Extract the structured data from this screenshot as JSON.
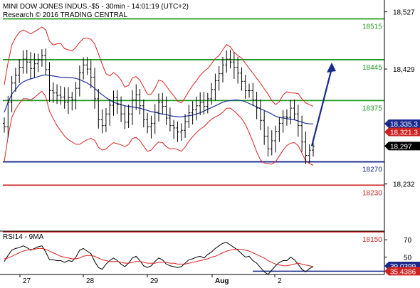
{
  "header": {
    "line1": "MINI DOW JONES INDUS.-$5 - 30min - 14:01:19 (UTC+2)",
    "line2": "Research © 2016 TRADING CENTRAL"
  },
  "colors": {
    "price_bars": "#000000",
    "bollinger": "#dd2222",
    "moving_average": "#2233aa",
    "resistance": "#229922",
    "support_blue": "#1a2a8c",
    "support_red": "#cc2222",
    "arrow": "#1a2a8c",
    "rsi": "#000000",
    "rsi_ma": "#dd2222",
    "badge_blue": "#1a2a8c",
    "badge_red": "#cc2222",
    "badge_black": "#000000"
  },
  "chart_data": [
    {
      "type": "candlestick",
      "panel": "price",
      "x_ticks": [
        "27",
        "28",
        "29",
        "Aug",
        "2"
      ],
      "ylim": [
        18150,
        18540
      ],
      "y_ticks": [
        "18,527",
        "18,429",
        "18,232"
      ],
      "y_tick_values": [
        18527,
        18429,
        18232
      ],
      "levels": [
        {
          "value": 18515,
          "label": "18515",
          "color": "green"
        },
        {
          "value": 18445,
          "label": "18445",
          "color": "green"
        },
        {
          "value": 18375,
          "label": "18375",
          "color": "green"
        },
        {
          "value": 18270,
          "label": "18270",
          "color": "blue"
        },
        {
          "value": 18230,
          "label": "18230",
          "color": "red"
        },
        {
          "value": 18150,
          "label": "18150",
          "color": "red"
        }
      ],
      "badges": [
        {
          "value": 18335.3,
          "label": "18,335.3",
          "color": "blue"
        },
        {
          "value": 18321.3,
          "label": "18,321.3",
          "color": "red"
        },
        {
          "value": 18297,
          "label": "18,297",
          "color": "black"
        }
      ],
      "arrow": {
        "from": [
          185,
          18297
        ],
        "to": [
          196,
          18440
        ]
      },
      "series": [
        {
          "role": "close",
          "values": [
            18330,
            18372,
            18405,
            18418,
            18432,
            18446,
            18441,
            18430,
            18438,
            18445,
            18452,
            18428,
            18392,
            18388,
            18384,
            18381,
            18372,
            18380,
            18376,
            18396,
            18423,
            18436,
            18429,
            18415,
            18378,
            18342,
            18332,
            18352,
            18367,
            18380,
            18368,
            18352,
            18338,
            18352,
            18376,
            18385,
            18366,
            18342,
            18330,
            18336,
            18355,
            18372,
            18365,
            18345,
            18332,
            18328,
            18321,
            18324,
            18339,
            18354,
            18359,
            18366,
            18372,
            18365,
            18378,
            18394,
            18409,
            18421,
            18436,
            18446,
            18441,
            18432,
            18422,
            18408,
            18392,
            18392,
            18376,
            18362,
            18341,
            18314,
            18292,
            18306,
            18322,
            18336,
            18347,
            18346,
            18362,
            18352,
            18332,
            18304,
            18281,
            18290,
            18297
          ]
        },
        {
          "role": "upper_bollinger",
          "values": [
            18402,
            18440,
            18470,
            18483,
            18492,
            18496,
            18493,
            18489,
            18493,
            18497,
            18501,
            18496,
            18477,
            18470,
            18472,
            18473,
            18464,
            18462,
            18460,
            18466,
            18475,
            18481,
            18482,
            18480,
            18472,
            18455,
            18437,
            18421,
            18417,
            18423,
            18418,
            18410,
            18398,
            18401,
            18414,
            18416,
            18410,
            18398,
            18386,
            18386,
            18396,
            18410,
            18408,
            18400,
            18391,
            18383,
            18374,
            18371,
            18380,
            18391,
            18401,
            18409,
            18418,
            18425,
            18430,
            18438,
            18447,
            18452,
            18462,
            18471,
            18467,
            18458,
            18452,
            18448,
            18439,
            18430,
            18422,
            18413,
            18405,
            18395,
            18386,
            18375,
            18368,
            18373,
            18385,
            18390,
            18388,
            18388,
            18387,
            18378,
            18371,
            18368,
            18365
          ]
        },
        {
          "role": "lower_bollinger",
          "values": [
            18270,
            18313,
            18346,
            18360,
            18370,
            18378,
            18378,
            18376,
            18380,
            18386,
            18391,
            18382,
            18357,
            18344,
            18332,
            18323,
            18314,
            18308,
            18304,
            18300,
            18300,
            18304,
            18308,
            18310,
            18307,
            18295,
            18290,
            18292,
            18298,
            18303,
            18301,
            18299,
            18296,
            18300,
            18310,
            18312,
            18306,
            18297,
            18288,
            18290,
            18298,
            18304,
            18303,
            18296,
            18292,
            18293,
            18291,
            18288,
            18295,
            18305,
            18313,
            18320,
            18326,
            18330,
            18337,
            18343,
            18347,
            18350,
            18355,
            18362,
            18362,
            18357,
            18351,
            18344,
            18334,
            18320,
            18304,
            18287,
            18273,
            18268,
            18267,
            18266,
            18270,
            18280,
            18290,
            18298,
            18302,
            18303,
            18298,
            18285,
            18272,
            18267,
            18264
          ]
        },
        {
          "role": "moving_average",
          "values": [
            18355,
            18372,
            18386,
            18394,
            18402,
            18407,
            18410,
            18412,
            18414,
            18416,
            18418,
            18419,
            18418,
            18417,
            18416,
            18415,
            18415,
            18414,
            18414,
            18413,
            18411,
            18408,
            18405,
            18401,
            18396,
            18390,
            18385,
            18380,
            18376,
            18372,
            18370,
            18368,
            18366,
            18365,
            18364,
            18363,
            18362,
            18360,
            18358,
            18356,
            18355,
            18353,
            18352,
            18351,
            18349,
            18348,
            18347,
            18347,
            18348,
            18349,
            18350,
            18352,
            18354,
            18357,
            18360,
            18363,
            18366,
            18369,
            18372,
            18374,
            18375,
            18376,
            18376,
            18375,
            18373,
            18370,
            18367,
            18364,
            18361,
            18358,
            18355,
            18352,
            18348,
            18346,
            18345,
            18344,
            18343,
            18342,
            18340,
            18338,
            18336,
            18335,
            18335
          ]
        }
      ]
    },
    {
      "type": "line",
      "panel": "rsi",
      "title": "RSI14 - 9MA",
      "ylim": [
        30,
        80
      ],
      "y_ticks": [
        "70",
        "50"
      ],
      "y_tick_values": [
        70,
        50
      ],
      "badges": [
        {
          "value": 39.0399,
          "label": "39.0399",
          "color": "blue"
        },
        {
          "value": 35.4386,
          "label": "35.4386",
          "color": "red"
        }
      ],
      "level": 35.4386,
      "series": [
        {
          "role": "rsi",
          "values": [
            45,
            52,
            58,
            60,
            61,
            63,
            61,
            58,
            60,
            62,
            63,
            56,
            47,
            47,
            46,
            46,
            44,
            46,
            45,
            50,
            58,
            60,
            57,
            54,
            45,
            38,
            36,
            42,
            46,
            49,
            46,
            42,
            39,
            43,
            49,
            51,
            46,
            40,
            38,
            40,
            45,
            49,
            47,
            42,
            40,
            39,
            38,
            39,
            43,
            47,
            48,
            50,
            51,
            49,
            53,
            56,
            60,
            63,
            66,
            67,
            64,
            61,
            58,
            54,
            50,
            51,
            46,
            43,
            38,
            33,
            30,
            35,
            40,
            44,
            46,
            46,
            50,
            47,
            42,
            36,
            33,
            37,
            39
          ]
        },
        {
          "role": "rsi_ma",
          "values": [
            48,
            49,
            51,
            53,
            55,
            57,
            58,
            59,
            59,
            60,
            60,
            59,
            57,
            55,
            53,
            51,
            50,
            49,
            48,
            48,
            49,
            51,
            52,
            52,
            51,
            49,
            47,
            46,
            45,
            45,
            45,
            44,
            43,
            43,
            44,
            45,
            45,
            44,
            43,
            43,
            43,
            44,
            44,
            44,
            43,
            43,
            42,
            42,
            42,
            43,
            44,
            45,
            46,
            47,
            48,
            50,
            51,
            53,
            55,
            57,
            58,
            59,
            59,
            59,
            58,
            57,
            55,
            53,
            51,
            49,
            46,
            44,
            42,
            41,
            40,
            40,
            41,
            42,
            43,
            42,
            41,
            40,
            39
          ]
        }
      ]
    }
  ]
}
